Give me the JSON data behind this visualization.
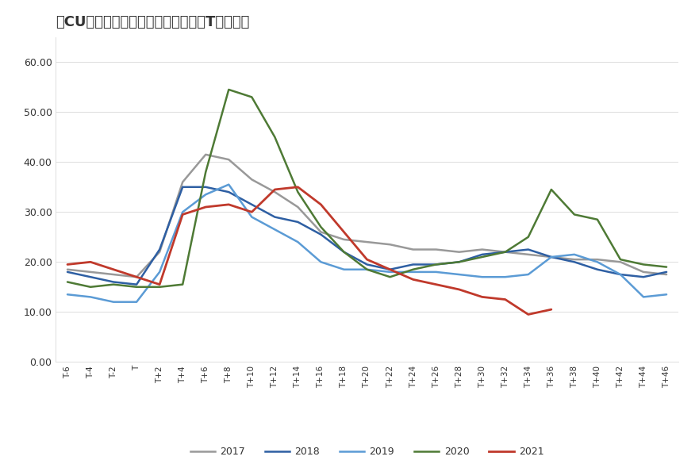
{
  "title": "「CU」历年国内精炼铜库存季节性（T为春节）",
  "background_color": "#ffffff",
  "plot_bg_color": "#ffffff",
  "text_color": "#333333",
  "grid_color": "#dddddd",
  "x_labels": [
    "T-6",
    "T-4",
    "T-2",
    "T",
    "T+2",
    "T+4",
    "T+6",
    "T+8",
    "T+10",
    "T+12",
    "T+14",
    "T+16",
    "T+18",
    "T+20",
    "T+22",
    "T+24",
    "T+26",
    "T+28",
    "T+30",
    "T+32",
    "T+34",
    "T+36",
    "T+38",
    "T+40",
    "T+42",
    "T+44",
    "T+46"
  ],
  "ylim": [
    0,
    65
  ],
  "yticks": [
    0.0,
    10.0,
    20.0,
    30.0,
    40.0,
    50.0,
    60.0
  ],
  "series": {
    "2017": {
      "color": "#999999",
      "linewidth": 1.8,
      "data": [
        18.5,
        18.0,
        17.5,
        17.0,
        22.0,
        36.0,
        41.5,
        40.5,
        36.5,
        34.0,
        31.0,
        26.0,
        24.5,
        24.0,
        23.5,
        22.5,
        22.5,
        22.0,
        22.5,
        22.0,
        21.5,
        21.0,
        20.5,
        20.5,
        20.0,
        18.0,
        17.5
      ]
    },
    "2018": {
      "color": "#2e5fa3",
      "linewidth": 1.8,
      "data": [
        18.0,
        17.0,
        16.0,
        15.5,
        22.5,
        35.0,
        35.0,
        34.0,
        31.5,
        29.0,
        28.0,
        25.5,
        22.0,
        19.5,
        18.5,
        19.5,
        19.5,
        20.0,
        21.5,
        22.0,
        22.5,
        21.0,
        20.0,
        18.5,
        17.5,
        17.0,
        18.0
      ]
    },
    "2019": {
      "color": "#5b9bd5",
      "linewidth": 1.8,
      "data": [
        13.5,
        13.0,
        12.0,
        12.0,
        18.0,
        30.0,
        33.5,
        35.5,
        29.0,
        26.5,
        24.0,
        20.0,
        18.5,
        18.5,
        18.0,
        18.0,
        18.0,
        17.5,
        17.0,
        17.0,
        17.5,
        21.0,
        21.5,
        20.0,
        17.5,
        13.0,
        13.5
      ]
    },
    "2020": {
      "color": "#4e7a35",
      "linewidth": 1.8,
      "data": [
        16.0,
        15.0,
        15.5,
        15.0,
        15.0,
        15.5,
        38.0,
        54.5,
        53.0,
        45.0,
        34.0,
        27.0,
        22.0,
        18.5,
        17.0,
        18.5,
        19.5,
        20.0,
        21.0,
        22.0,
        25.0,
        34.5,
        29.5,
        28.5,
        20.5,
        19.5,
        19.0
      ]
    },
    "2021": {
      "color": "#c0392b",
      "linewidth": 2.0,
      "data": [
        19.5,
        20.0,
        18.5,
        17.0,
        15.5,
        29.5,
        31.0,
        31.5,
        30.0,
        34.5,
        35.0,
        31.5,
        26.0,
        20.5,
        18.5,
        16.5,
        15.5,
        14.5,
        13.0,
        12.5,
        9.5,
        10.5,
        null,
        null,
        null,
        null,
        null
      ]
    }
  },
  "legend_order": [
    "2017",
    "2018",
    "2019",
    "2020",
    "2021"
  ]
}
